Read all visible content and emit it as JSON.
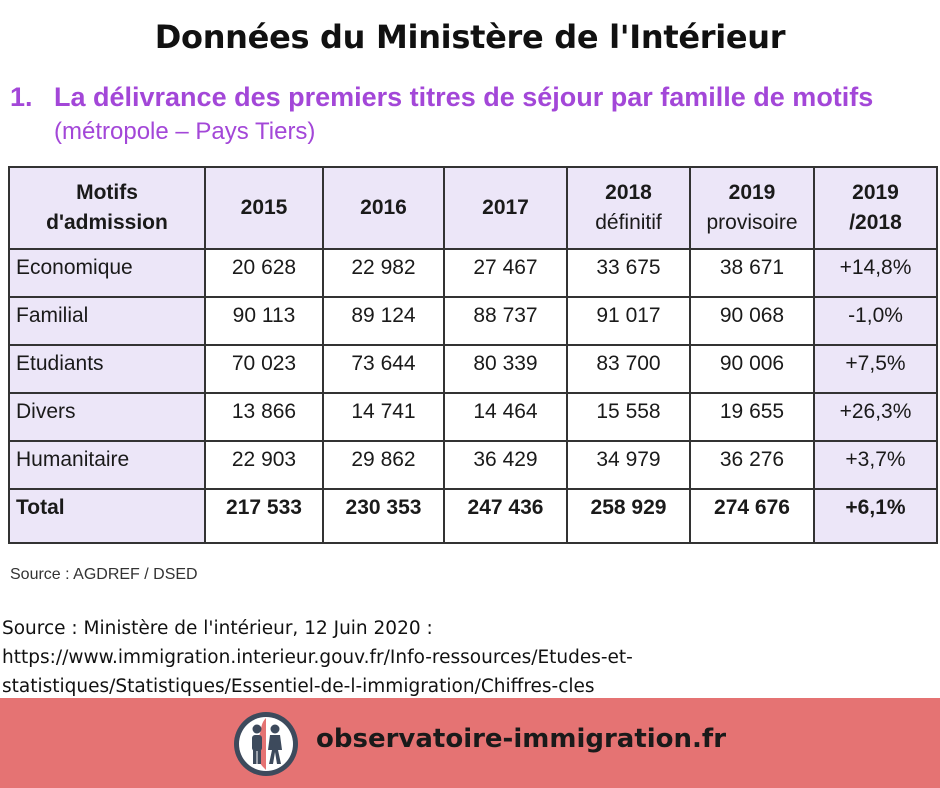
{
  "header": {
    "title": "Données du Ministère de l'Intérieur",
    "section_number": "1.",
    "section_title": "La délivrance des premiers titres de séjour par famille de motifs",
    "section_subtitle": "(métropole – Pays Tiers)"
  },
  "colors": {
    "accent_purple": "#a347d8",
    "table_shade": "#ece6f8",
    "footer_bg": "#e57373"
  },
  "chart_data": {
    "type": "table",
    "title": "La délivrance des premiers titres de séjour par famille de motifs",
    "subtitle": "(métropole – Pays Tiers)",
    "columns": [
      {
        "line1": "Motifs",
        "line2": "d'admission"
      },
      {
        "line1": "2015",
        "line2": ""
      },
      {
        "line1": "2016",
        "line2": ""
      },
      {
        "line1": "2017",
        "line2": ""
      },
      {
        "line1": "2018",
        "line2": "définitif"
      },
      {
        "line1": "2019",
        "line2": "provisoire"
      },
      {
        "line1": "2019",
        "line2": "/2018"
      }
    ],
    "rows": [
      {
        "label": "Economique",
        "values": [
          "20 628",
          "22 982",
          "27 467",
          "33 675",
          "38 671"
        ],
        "change": "+14,8%"
      },
      {
        "label": "Familial",
        "values": [
          "90 113",
          "89 124",
          "88 737",
          "91 017",
          "90 068"
        ],
        "change": "-1,0%"
      },
      {
        "label": "Etudiants",
        "values": [
          "70 023",
          "73 644",
          "80 339",
          "83 700",
          "90 006"
        ],
        "change": "+7,5%"
      },
      {
        "label": "Divers",
        "values": [
          "13 866",
          "14 741",
          "14 464",
          "15 558",
          "19 655"
        ],
        "change": "+26,3%"
      },
      {
        "label": "Humanitaire",
        "values": [
          "22 903",
          "29 862",
          "36 429",
          "34 979",
          "36 276"
        ],
        "change": "+3,7%"
      }
    ],
    "total": {
      "label": "Total",
      "values": [
        "217 533",
        "230 353",
        "247 436",
        "258 929",
        "274 676"
      ],
      "change": "+6,1%"
    },
    "source": "Source : AGDREF / DSED"
  },
  "source_block": {
    "line1": "Source : Ministère de l'intérieur, 12 Juin 2020 :",
    "line2": "https://www.immigration.interieur.gouv.fr/Info-ressources/Etudes-et-",
    "line3": "statistiques/Statistiques/Essentiel-de-l-immigration/Chiffres-cles"
  },
  "footer": {
    "logo_icon": "people-walking-icon",
    "site": "observatoire-immigration.fr"
  }
}
